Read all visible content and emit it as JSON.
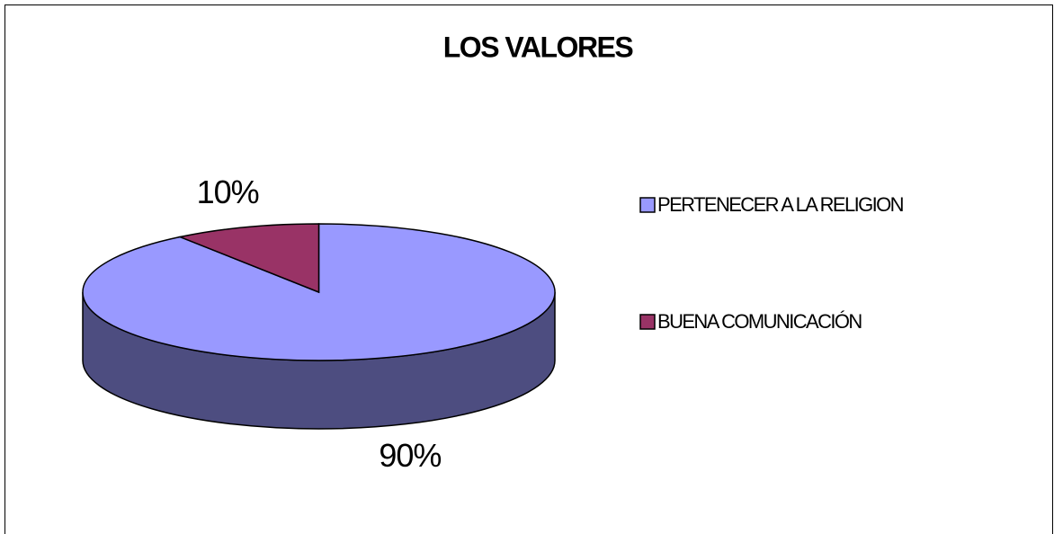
{
  "chart_data": {
    "type": "pie",
    "title": "LOS VALORES",
    "categories": [
      "PERTENECER A LA RELIGION",
      "BUENA COMUNICACIÓN"
    ],
    "values": [
      90,
      10
    ],
    "value_labels": [
      "90%",
      "10%"
    ],
    "colors": [
      "#9999ff",
      "#993366"
    ],
    "legend": "right"
  }
}
